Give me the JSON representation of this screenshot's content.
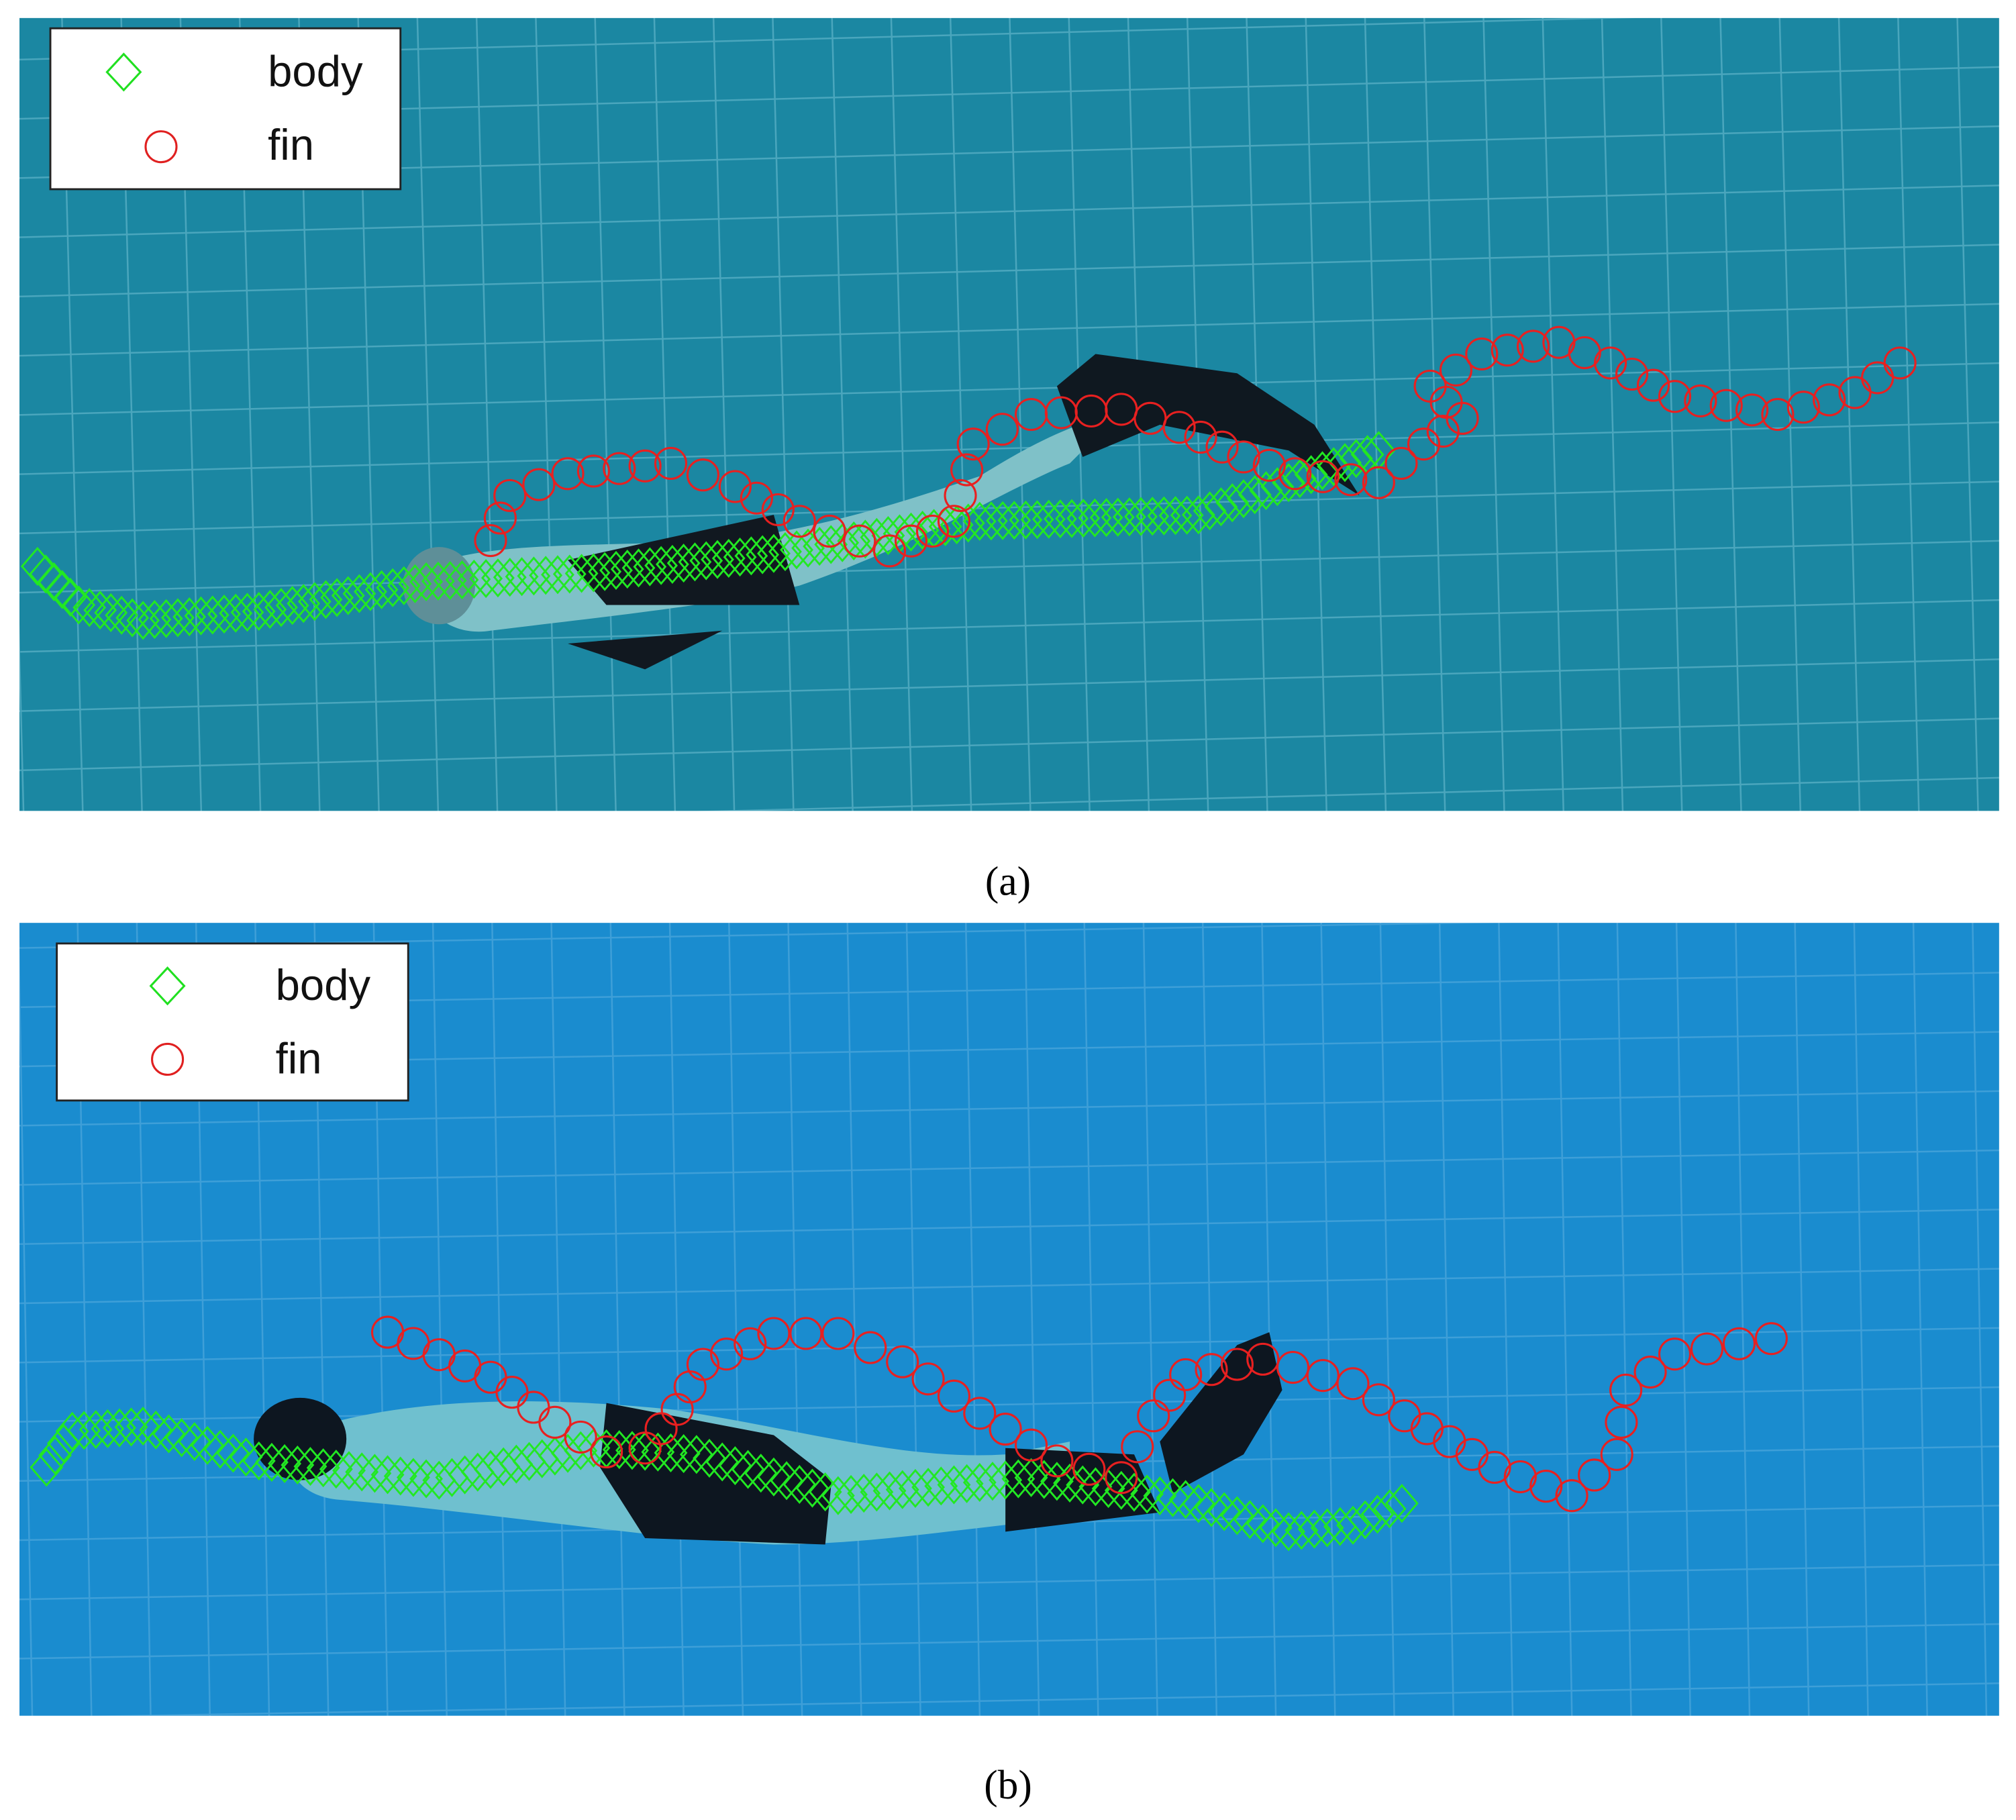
{
  "panels": [
    {
      "legend": [
        "body",
        "fin"
      ],
      "caption": "(a)"
    },
    {
      "legend": [
        "body",
        "fin"
      ],
      "caption": "(b)"
    }
  ]
}
